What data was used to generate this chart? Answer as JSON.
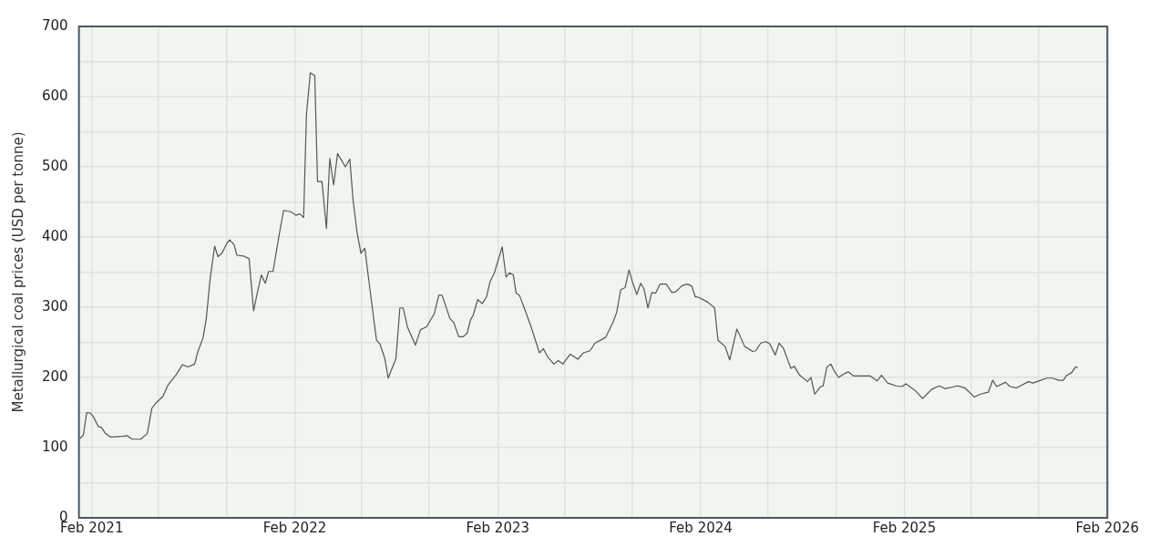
{
  "chart_data": {
    "type": "line",
    "ylabel": "Metallurgical coal prices (USD per tonne)",
    "xlim": [
      "2021-01-09",
      "2026-02-01"
    ],
    "xticks": [
      {
        "value": "2021-02-01",
        "label": "Feb 2021"
      },
      {
        "value": "2021-06-01",
        "label": null
      },
      {
        "value": "2021-10-01",
        "label": null
      },
      {
        "value": "2022-02-01",
        "label": "Feb 2022"
      },
      {
        "value": "2022-06-01",
        "label": null
      },
      {
        "value": "2022-10-01",
        "label": null
      },
      {
        "value": "2023-02-01",
        "label": "Feb 2023"
      },
      {
        "value": "2023-06-01",
        "label": null
      },
      {
        "value": "2023-10-01",
        "label": null
      },
      {
        "value": "2024-02-01",
        "label": "Feb 2024"
      },
      {
        "value": "2024-06-01",
        "label": null
      },
      {
        "value": "2024-10-01",
        "label": null
      },
      {
        "value": "2025-02-01",
        "label": "Feb 2025"
      },
      {
        "value": "2025-06-01",
        "label": null
      },
      {
        "value": "2025-10-01",
        "label": null
      },
      {
        "value": "2026-02-01",
        "label": "Feb 2026"
      }
    ],
    "ylim": [
      0,
      700
    ],
    "yticks": [
      0,
      {
        "value": 50,
        "label": null
      },
      100,
      {
        "value": 150,
        "label": null
      },
      200,
      {
        "value": 250,
        "label": null
      },
      300,
      {
        "value": 350,
        "label": null
      },
      400,
      {
        "value": 450,
        "label": null
      },
      500,
      {
        "value": 550,
        "label": null
      },
      600,
      {
        "value": 650,
        "label": null
      },
      700
    ],
    "grid": true,
    "legend": false,
    "marker": "none",
    "line_style": "solid",
    "x": [
      "2021-01-11",
      "2021-01-17",
      "2021-01-23",
      "2021-01-30",
      "2021-02-04",
      "2021-02-13",
      "2021-02-18",
      "2021-02-26",
      "2021-03-07",
      "2021-03-28",
      "2021-04-06",
      "2021-04-15",
      "2021-04-30",
      "2021-05-12",
      "2021-05-20",
      "2021-05-28",
      "2021-06-09",
      "2021-06-18",
      "2021-07-03",
      "2021-07-14",
      "2021-07-24",
      "2021-08-05",
      "2021-08-11",
      "2021-08-20",
      "2021-08-26",
      "2021-09-02",
      "2021-09-10",
      "2021-09-16",
      "2021-09-23",
      "2021-10-02",
      "2021-10-07",
      "2021-10-15",
      "2021-10-20",
      "2021-11-01",
      "2021-11-11",
      "2021-11-19",
      "2021-11-25",
      "2021-12-03",
      "2021-12-10",
      "2021-12-16",
      "2021-12-24",
      "2022-01-04",
      "2022-01-12",
      "2022-01-25",
      "2022-02-03",
      "2022-02-10",
      "2022-02-17",
      "2022-02-22",
      "2022-03-01",
      "2022-03-09",
      "2022-03-14",
      "2022-03-22",
      "2022-03-30",
      "2022-04-05",
      "2022-04-12",
      "2022-04-19",
      "2022-05-03",
      "2022-05-11",
      "2022-05-17",
      "2022-05-24",
      "2022-05-31",
      "2022-06-07",
      "2022-06-16",
      "2022-06-28",
      "2022-07-04",
      "2022-07-13",
      "2022-07-19",
      "2022-08-02",
      "2022-08-09",
      "2022-08-15",
      "2022-08-23",
      "2022-09-06",
      "2022-09-15",
      "2022-09-26",
      "2022-10-10",
      "2022-10-18",
      "2022-10-24",
      "2022-11-07",
      "2022-11-14",
      "2022-11-23",
      "2022-12-01",
      "2022-12-08",
      "2022-12-14",
      "2022-12-19",
      "2022-12-27",
      "2023-01-04",
      "2023-01-12",
      "2023-01-18",
      "2023-01-26",
      "2023-02-09",
      "2023-02-16",
      "2023-02-22",
      "2023-03-01",
      "2023-03-06",
      "2023-03-12",
      "2023-03-22",
      "2023-04-02",
      "2023-04-17",
      "2023-04-24",
      "2023-05-02",
      "2023-05-13",
      "2023-05-21",
      "2023-05-29",
      "2023-06-11",
      "2023-06-25",
      "2023-07-05",
      "2023-07-17",
      "2023-07-26",
      "2023-08-14",
      "2023-08-27",
      "2023-09-03",
      "2023-09-10",
      "2023-09-18",
      "2023-09-25",
      "2023-10-02",
      "2023-10-09",
      "2023-10-16",
      "2023-10-22",
      "2023-10-29",
      "2023-11-05",
      "2023-11-12",
      "2023-11-20",
      "2023-12-01",
      "2023-12-11",
      "2023-12-18",
      "2023-12-30",
      "2024-01-08",
      "2024-01-16",
      "2024-01-22",
      "2024-01-29",
      "2024-02-14",
      "2024-02-26",
      "2024-03-03",
      "2024-03-16",
      "2024-03-24",
      "2024-04-06",
      "2024-04-20",
      "2024-04-27",
      "2024-05-04",
      "2024-05-10",
      "2024-05-19",
      "2024-05-28",
      "2024-06-04",
      "2024-06-14",
      "2024-06-21",
      "2024-06-29",
      "2024-07-12",
      "2024-07-18",
      "2024-07-27",
      "2024-08-11",
      "2024-08-17",
      "2024-08-24",
      "2024-09-02",
      "2024-09-08",
      "2024-09-15",
      "2024-09-22",
      "2024-09-28",
      "2024-10-06",
      "2024-10-13",
      "2024-10-23",
      "2024-11-02",
      "2024-12-02",
      "2024-12-14",
      "2024-12-22",
      "2025-01-02",
      "2025-01-17",
      "2025-01-28",
      "2025-02-04",
      "2025-02-21",
      "2025-03-06",
      "2025-03-22",
      "2025-04-05",
      "2025-04-15",
      "2025-04-27",
      "2025-05-08",
      "2025-05-21",
      "2025-06-07",
      "2025-06-17",
      "2025-07-02",
      "2025-07-10",
      "2025-07-17",
      "2025-08-02",
      "2025-08-10",
      "2025-08-22",
      "2025-09-12",
      "2025-09-20",
      "2025-10-01",
      "2025-10-15",
      "2025-10-25",
      "2025-11-06",
      "2025-11-14",
      "2025-11-20",
      "2025-11-29",
      "2025-12-06",
      "2025-12-10"
    ],
    "series": [
      {
        "color": "#555555",
        "values": [
          113,
          118,
          150,
          149,
          144,
          130,
          129,
          120,
          115,
          116,
          117,
          112,
          112,
          120,
          156,
          164,
          173,
          189,
          204,
          218,
          215,
          219,
          237,
          256,
          284,
          341,
          387,
          372,
          377,
          391,
          396,
          389,
          374,
          373,
          369,
          295,
          318,
          346,
          334,
          351,
          351,
          403,
          438,
          436,
          431,
          433,
          428,
          574,
          634,
          630,
          479,
          479,
          412,
          512,
          474,
          519,
          500,
          511,
          452,
          407,
          377,
          384,
          327,
          253,
          248,
          227,
          199,
          227,
          299,
          299,
          271,
          246,
          268,
          272,
          291,
          317,
          317,
          284,
          278,
          258,
          258,
          263,
          282,
          289,
          311,
          305,
          315,
          336,
          349,
          386,
          343,
          349,
          346,
          320,
          317,
          296,
          272,
          235,
          241,
          229,
          219,
          224,
          219,
          233,
          226,
          235,
          238,
          249,
          257,
          278,
          293,
          325,
          328,
          353,
          334,
          318,
          334,
          326,
          299,
          321,
          320,
          333,
          333,
          321,
          322,
          331,
          333,
          330,
          315,
          314,
          307,
          299,
          253,
          244,
          225,
          269,
          244,
          241,
          237,
          238,
          249,
          251,
          248,
          232,
          249,
          241,
          213,
          216,
          204,
          194,
          200,
          176,
          186,
          188,
          215,
          219,
          209,
          200,
          204,
          208,
          202,
          202,
          195,
          203,
          192,
          188,
          187,
          191,
          181,
          170,
          183,
          188,
          184,
          186,
          188,
          185,
          172,
          176,
          179,
          196,
          187,
          193,
          187,
          185,
          194,
          192,
          195,
          199,
          199,
          196,
          196,
          203,
          207,
          215,
          214
        ]
      }
    ]
  }
}
